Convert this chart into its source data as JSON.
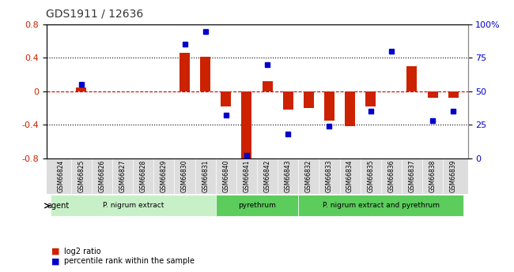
{
  "title": "GDS1911 / 12636",
  "samples": [
    "GSM66824",
    "GSM66825",
    "GSM66826",
    "GSM66827",
    "GSM66828",
    "GSM66829",
    "GSM66830",
    "GSM66831",
    "GSM66840",
    "GSM66841",
    "GSM66842",
    "GSM66843",
    "GSM66832",
    "GSM66833",
    "GSM66834",
    "GSM66835",
    "GSM66836",
    "GSM66837",
    "GSM66838",
    "GSM66839"
  ],
  "log2_ratio": [
    0.0,
    0.05,
    0.0,
    0.0,
    0.0,
    0.0,
    0.46,
    0.41,
    -0.18,
    -0.8,
    0.12,
    -0.22,
    -0.2,
    -0.35,
    -0.42,
    -0.18,
    0.0,
    0.3,
    -0.08,
    -0.08
  ],
  "pct_rank": [
    null,
    55,
    null,
    null,
    null,
    null,
    85,
    95,
    32,
    2,
    70,
    18,
    null,
    24,
    null,
    35,
    80,
    null,
    28,
    35
  ],
  "groups": [
    {
      "label": "P. nigrum extract",
      "start": 0,
      "end": 8,
      "color": "#90ee90"
    },
    {
      "label": "pyrethrum",
      "start": 8,
      "end": 12,
      "color": "#50c050"
    },
    {
      "label": "P. nigrum extract and pyrethrum",
      "start": 12,
      "end": 20,
      "color": "#50c050"
    }
  ],
  "ylim": [
    -0.8,
    0.8
  ],
  "yticks": [
    -0.8,
    -0.4,
    0.0,
    0.4,
    0.8
  ],
  "pct_ylim": [
    0,
    100
  ],
  "pct_yticks": [
    0,
    25,
    50,
    75,
    100
  ],
  "bar_color": "#cc2200",
  "dot_color": "#0000cc",
  "zero_line_color": "#cc0000",
  "grid_color": "#000000",
  "background_color": "#ffffff",
  "group_bar_color": "#aaaaaa"
}
